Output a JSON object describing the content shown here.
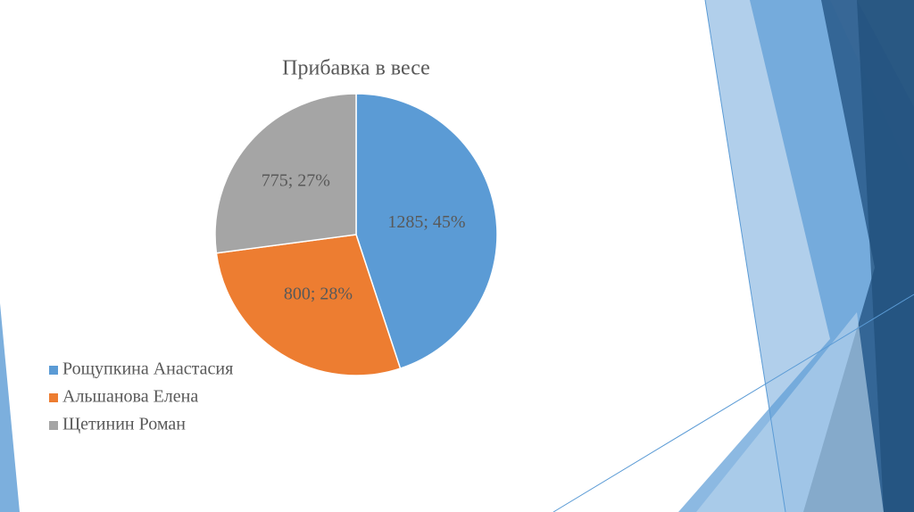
{
  "chart_data": {
    "type": "pie",
    "title": "Прибавка в весе",
    "categories": [
      "Рощупкина Анастасия",
      "Альшанова Елена",
      "Щетинин Роман"
    ],
    "values": [
      1285,
      800,
      775
    ],
    "value_labels": [
      "1285; 45%",
      "800; 28%",
      "775; 27%"
    ],
    "colors": [
      "#5b9bd5",
      "#ed7d31",
      "#a5a5a5"
    ],
    "legend": "bottom-left"
  }
}
